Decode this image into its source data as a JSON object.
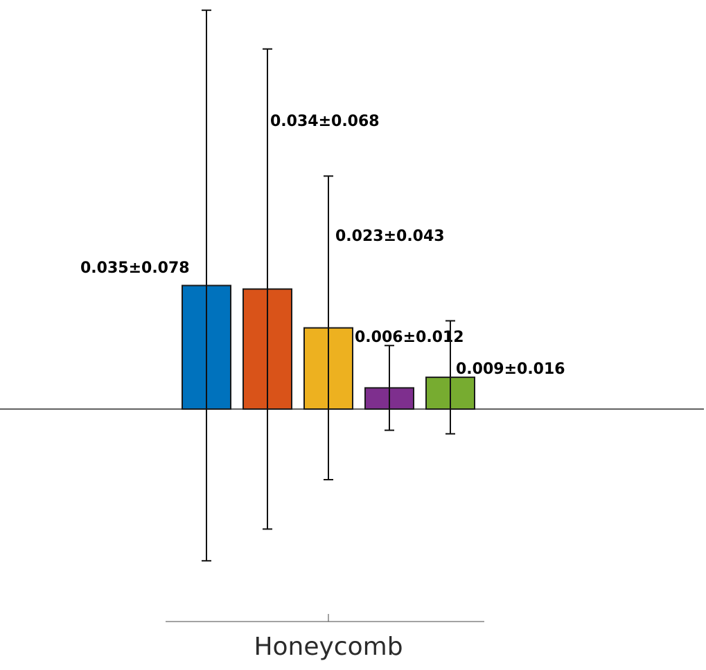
{
  "chart_data": {
    "type": "bar",
    "categories": [
      "Honeycomb"
    ],
    "series": [
      {
        "color": "#0072BD",
        "value": 0.035,
        "error": 0.078,
        "label": "0.035±0.078"
      },
      {
        "color": "#D95319",
        "value": 0.034,
        "error": 0.068,
        "label": "0.034±0.068"
      },
      {
        "color": "#EDB120",
        "value": 0.023,
        "error": 0.043,
        "label": "0.023±0.043"
      },
      {
        "color": "#7E2F8E",
        "value": 0.006,
        "error": 0.012,
        "label": "0.006±0.012"
      },
      {
        "color": "#77AC30",
        "value": 0.009,
        "error": 0.016,
        "label": "0.009±0.016"
      }
    ],
    "xlabel": "",
    "ylabel": "",
    "grid": false
  }
}
